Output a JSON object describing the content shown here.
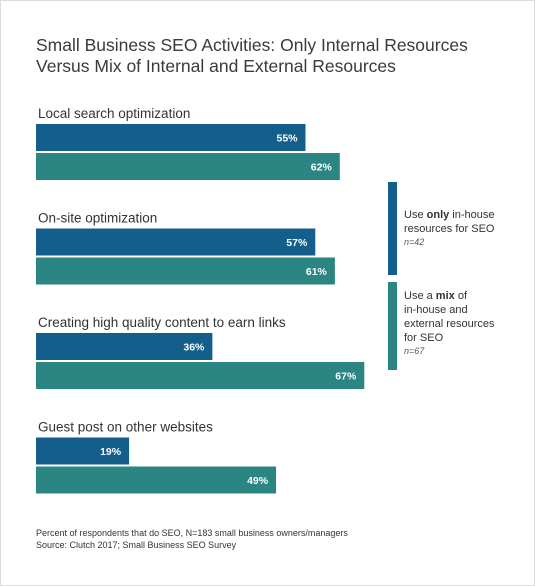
{
  "title_line1": "Small Business SEO Activities: Only Internal Resources",
  "title_line2": "Versus Mix of Internal and External Resources",
  "legend": [
    {
      "pre": "Use ",
      "bold": "only",
      "post": " in-house",
      "line2": "resources for SEO",
      "line3": "",
      "line4": "",
      "n": "n=42",
      "color": "#135e8a"
    },
    {
      "pre": "Use a ",
      "bold": "mix",
      "post": " of",
      "line2": "in-house and",
      "line3": "external resources",
      "line4": "for SEO",
      "n": "n=67",
      "color": "#2b8683"
    }
  ],
  "footer_line1": "Percent of respondents that do SEO, N=183 small business owners/managers",
  "footer_line2": "Source: Clutch 2017; Small Business SEO Survey",
  "chart_data": {
    "type": "bar",
    "orientation": "horizontal",
    "categories": [
      "Local search optimization",
      "On-site optimization",
      "Creating high quality content to earn links",
      "Guest post on other websites"
    ],
    "series": [
      {
        "name": "Use only in-house resources for SEO",
        "values": [
          55,
          57,
          36,
          19
        ],
        "color": "#135e8a"
      },
      {
        "name": "Use a mix of in-house and external resources for SEO",
        "values": [
          62,
          61,
          67,
          49
        ],
        "color": "#2b8683"
      }
    ],
    "value_labels": [
      [
        "55%",
        "57%",
        "36%",
        "19%"
      ],
      [
        "62%",
        "61%",
        "67%",
        "49%"
      ]
    ],
    "xlim": [
      0,
      100
    ],
    "grid": false,
    "legend_position": "right"
  }
}
